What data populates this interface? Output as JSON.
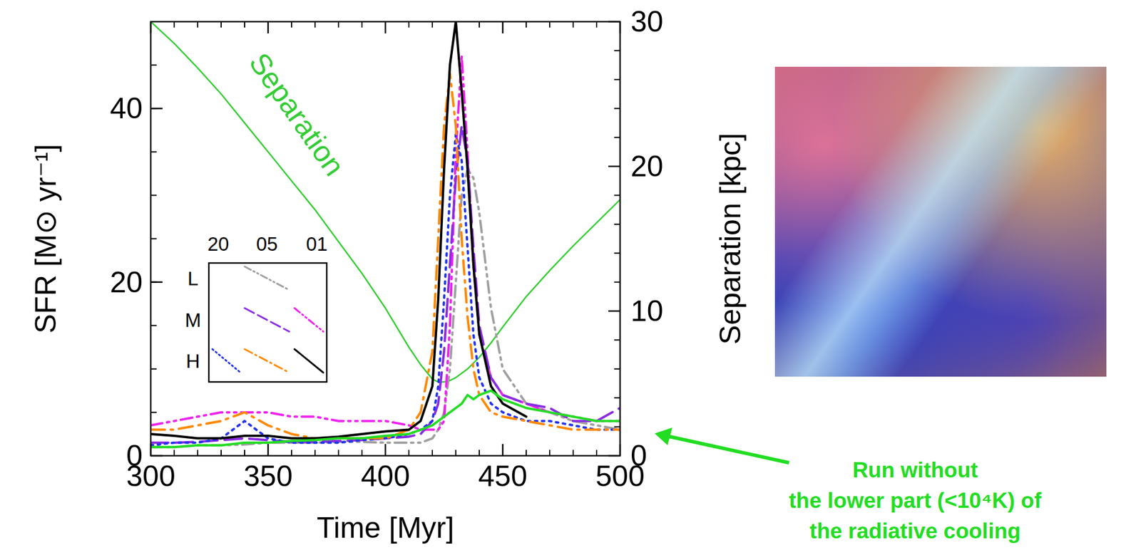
{
  "chart_data": {
    "type": "line",
    "x": [
      300,
      310,
      320,
      330,
      340,
      350,
      360,
      370,
      380,
      390,
      400,
      410,
      415,
      420,
      422.5,
      425,
      427.5,
      430,
      432.5,
      435,
      437.5,
      440,
      445,
      450,
      460,
      470,
      480,
      490,
      500
    ],
    "xlim": [
      300,
      500
    ],
    "xticks": [
      300,
      350,
      400,
      450,
      500
    ],
    "ylim": [
      0,
      50
    ],
    "yticks": [
      0,
      20,
      40
    ],
    "y2lim": [
      0,
      30
    ],
    "y2ticks": [
      0,
      10,
      20,
      30
    ],
    "x_label": "Time [Myr]",
    "y_label": "SFR [M⊙ yr⁻¹]",
    "y2_label": "Separation [kpc]",
    "inset_legend": {
      "columns": [
        "20",
        "05",
        "01"
      ],
      "rows": [
        "L",
        "M",
        "H"
      ]
    },
    "annotation": [
      "Run without",
      "the lower part (<10⁴K) of",
      "the radiative cooling"
    ],
    "series": [
      {
        "name": "Separation",
        "color": "#33cc33",
        "line_style": "solid",
        "axis": "y2",
        "values": [
          30,
          28.5,
          26.8,
          25,
          23,
          21,
          19,
          17,
          14.8,
          12.6,
          10.2,
          7.5,
          6.3,
          5.3,
          5.1,
          5.1,
          5.2,
          5.4,
          5.7,
          6.0,
          6.4,
          6.8,
          7.8,
          8.9,
          11,
          12.8,
          14.5,
          16.1,
          17.7
        ]
      },
      {
        "row": "L",
        "column": "05",
        "color": "#a0a0a0",
        "line_style": "dashdotdot",
        "values": [
          1,
          1,
          1.2,
          1.2,
          1.3,
          1.5,
          1.5,
          1.5,
          1.6,
          1.6,
          1.5,
          1.5,
          1.5,
          2,
          3,
          5,
          10,
          20,
          30,
          33,
          32,
          28,
          17,
          10,
          6,
          5,
          4,
          3.5,
          3
        ]
      },
      {
        "row": "M",
        "column": "01",
        "color": "#ee22ee",
        "line_style": "dashdotdot",
        "values": [
          3.5,
          4,
          4.5,
          5,
          5,
          5,
          4.5,
          4.5,
          4,
          4,
          4,
          3.5,
          3,
          3,
          3,
          4,
          15,
          35,
          46,
          35,
          22,
          14,
          9,
          7,
          6,
          5,
          4.5,
          4,
          4
        ]
      },
      {
        "row": "M",
        "column": "05",
        "color": "#8a2be2",
        "line_style": "longdash",
        "values": [
          1.5,
          1.5,
          1.6,
          1.8,
          2,
          1.8,
          1.6,
          1.6,
          1.7,
          1.8,
          2,
          2.2,
          2.5,
          4,
          6,
          12,
          22,
          32,
          38,
          34,
          24,
          15,
          9,
          7,
          6,
          5.5,
          4,
          4,
          5.5
        ]
      },
      {
        "row": "H",
        "column": "20",
        "color": "#2233ee",
        "line_style": "dotted",
        "values": [
          1.2,
          1.5,
          1.5,
          2,
          4,
          2,
          1.5,
          1.5,
          1.5,
          1.8,
          2,
          2.5,
          3,
          4,
          8,
          18,
          30,
          37,
          34,
          24,
          14,
          9,
          6,
          5,
          4,
          4,
          3.5,
          3,
          3
        ]
      },
      {
        "row": "H",
        "column": "05",
        "color": "#ff8800",
        "line_style": "dashdot",
        "values": [
          3,
          3,
          3.5,
          4,
          5,
          3.5,
          2.5,
          2,
          2,
          2,
          2,
          3,
          5,
          12,
          25,
          38,
          44,
          38,
          25,
          16,
          10,
          7,
          5,
          4.5,
          4,
          3.5,
          3,
          3,
          3
        ]
      },
      {
        "row": "H",
        "column": "01",
        "color": "#000000",
        "line_style": "solid",
        "values": [
          2.5,
          2.3,
          2,
          2,
          2.3,
          2.3,
          2,
          2,
          2.2,
          2.5,
          2.8,
          3,
          4,
          8,
          18,
          33,
          45,
          50,
          42,
          33,
          22,
          14,
          8,
          6,
          4.5,
          null,
          null,
          null,
          null
        ]
      },
      {
        "color": "#22dd22",
        "line_style": "solid",
        "values": [
          1,
          1,
          1.2,
          1.2,
          1.5,
          1.5,
          1.7,
          1.8,
          2,
          2,
          2.3,
          2.5,
          3,
          3.5,
          4,
          4.5,
          5,
          5.5,
          6,
          7,
          6.5,
          7,
          7.5,
          6.5,
          5.5,
          5,
          4.5,
          4,
          4
        ]
      }
    ]
  }
}
